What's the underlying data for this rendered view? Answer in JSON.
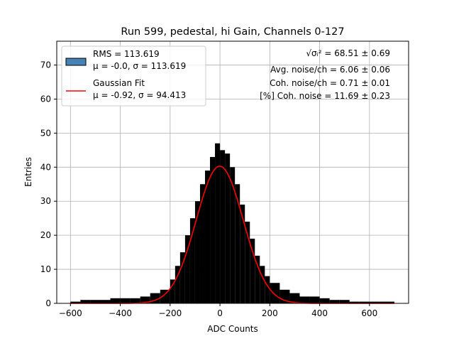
{
  "chart_data": {
    "type": "bar",
    "title": "Run 599, pedestal, hi Gain, Channels 0-127",
    "xlabel": "ADC Counts",
    "ylabel": "Entries",
    "xlim": [
      -655,
      757
    ],
    "ylim": [
      0,
      77
    ],
    "xticks": [
      -600,
      -400,
      -200,
      0,
      200,
      400,
      600
    ],
    "yticks": [
      0,
      10,
      20,
      30,
      40,
      50,
      60,
      70
    ],
    "grid": true,
    "legend_position": "top-left",
    "legend": [
      {
        "label_line1": "RMS = 113.619",
        "label_line2": "μ = -0.0, σ = 113.619",
        "marker": "patch",
        "color": "#4682b4"
      },
      {
        "label_line1": "Gaussian Fit",
        "label_line2": "μ = -0.92, σ = 94.413",
        "marker": "line",
        "color": "#ff0000"
      }
    ],
    "annotations": [
      "√σᵢ² = 68.51 ± 0.69",
      "Avg. noise/ch = 6.06 ± 0.06",
      "Coh. noise/ch = 0.71 ± 0.01",
      "[%] Coh. noise = 11.69 ± 0.23"
    ],
    "histogram": {
      "bin_edges": [
        -600,
        -560,
        -520,
        -480,
        -440,
        -400,
        -360,
        -320,
        -280,
        -240,
        -200,
        -180,
        -160,
        -140,
        -120,
        -100,
        -80,
        -60,
        -40,
        -20,
        0,
        20,
        40,
        60,
        80,
        100,
        120,
        140,
        160,
        180,
        200,
        240,
        280,
        320,
        360,
        400,
        440,
        480,
        520,
        560,
        600,
        640,
        700
      ],
      "counts": [
        0.5,
        1,
        1,
        1,
        1.5,
        1.5,
        1.5,
        2,
        3,
        4,
        7,
        11,
        15,
        20,
        25,
        30,
        35,
        39,
        43,
        47,
        45,
        44,
        40,
        35,
        29,
        24,
        19,
        14,
        11,
        8,
        6,
        4,
        3,
        2,
        2,
        1.5,
        1,
        1,
        0.5,
        0.5,
        0.5,
        0.5
      ],
      "color": "#000000"
    },
    "gaussian_fit": {
      "mu": -0.92,
      "sigma": 94.413,
      "peak": 40.3,
      "x_range": [
        -600,
        700
      ],
      "color": "#ff0000"
    }
  }
}
